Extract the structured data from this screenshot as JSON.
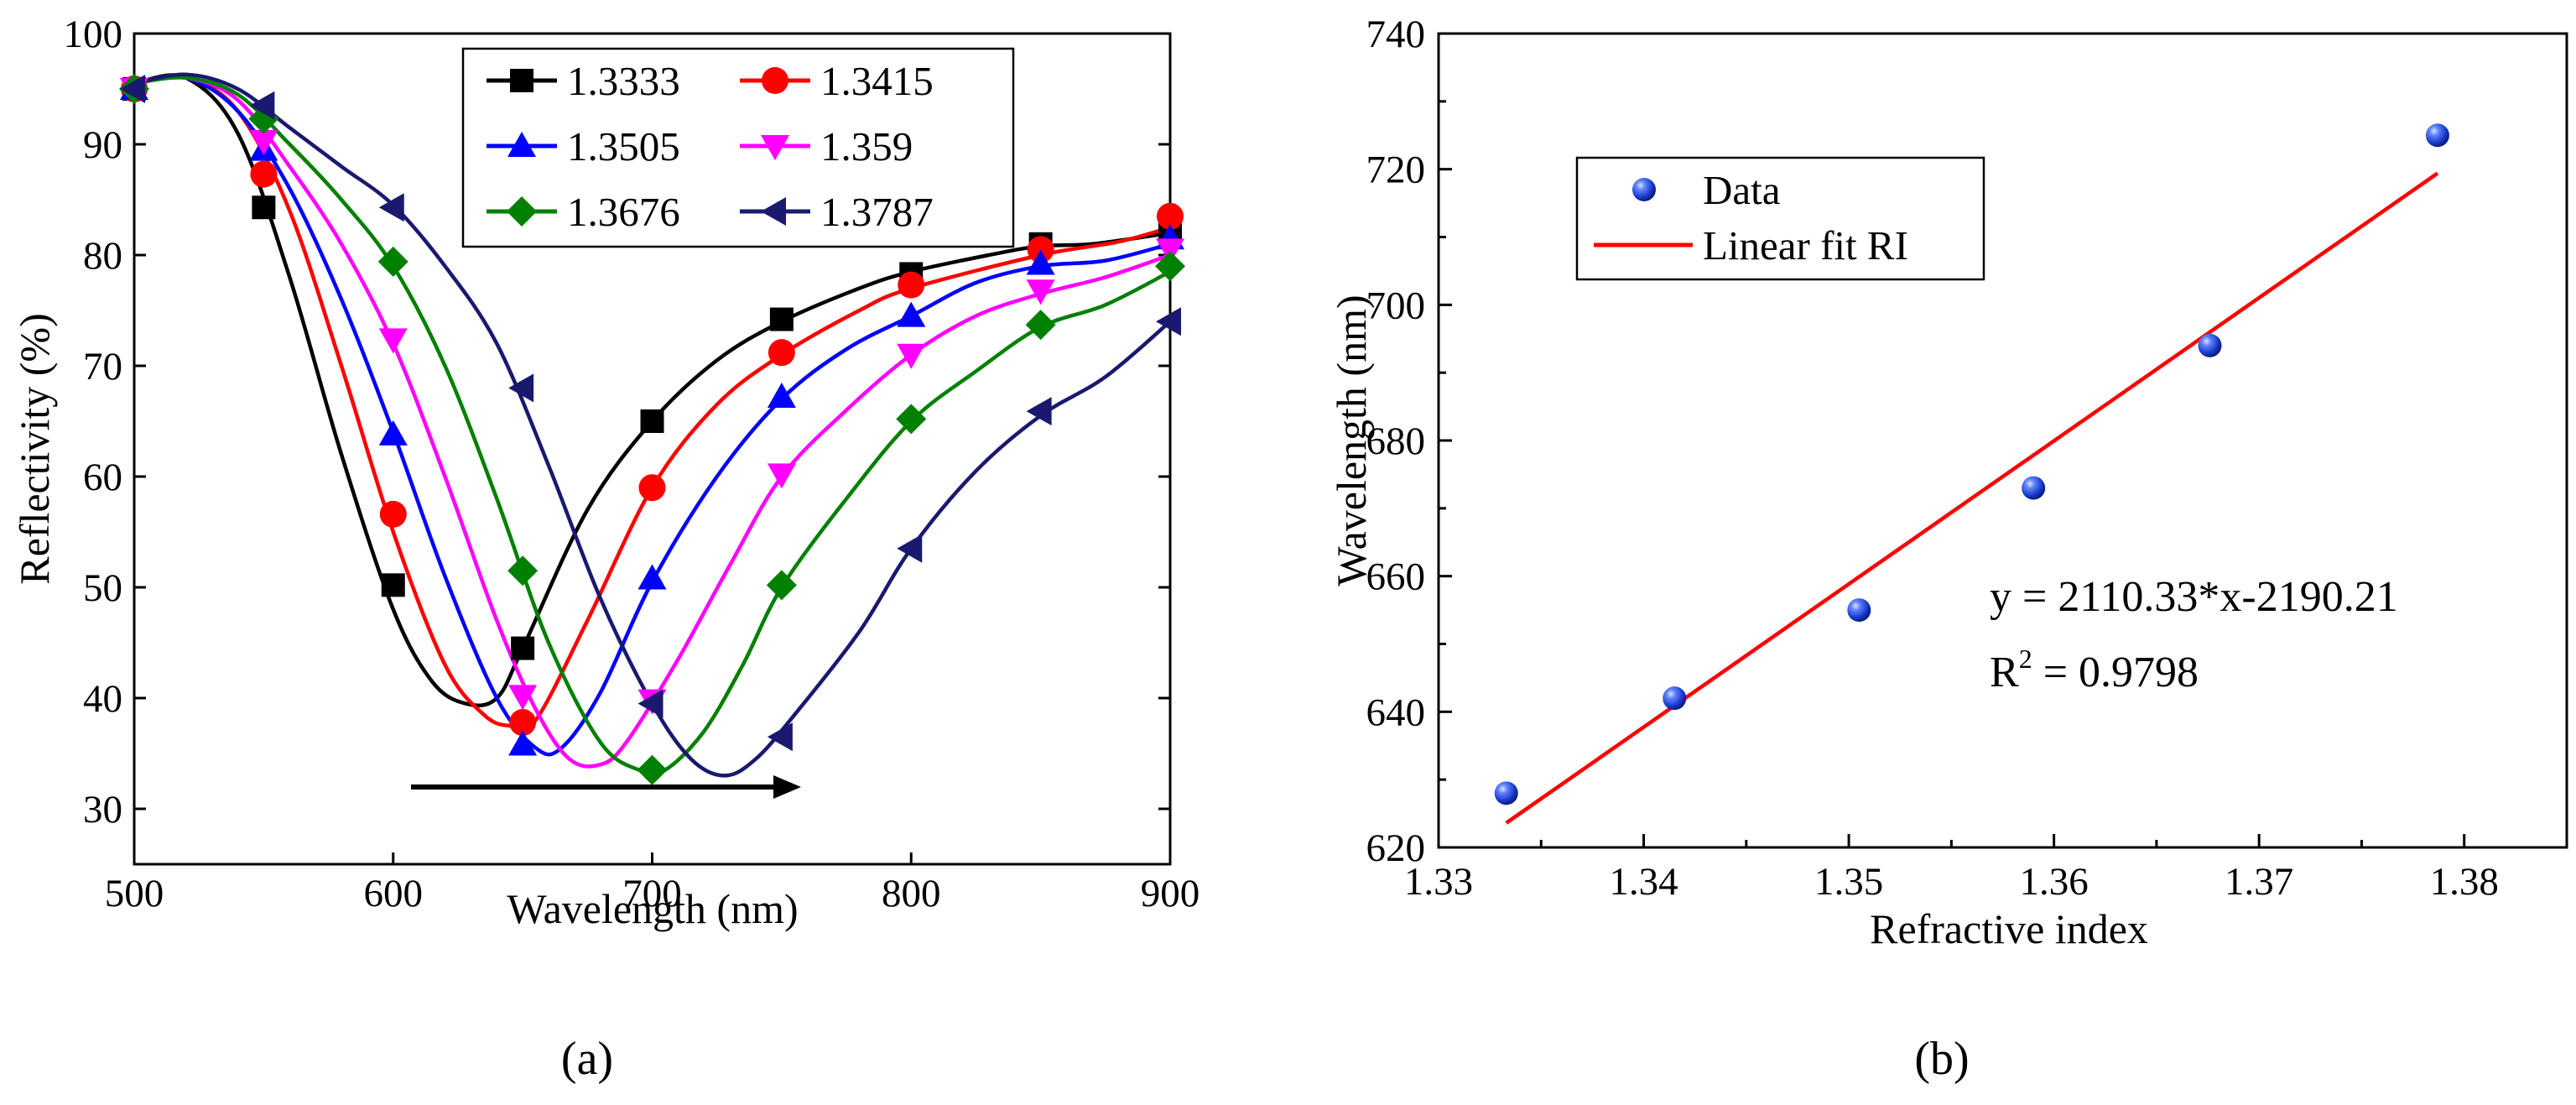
{
  "chart_data": [
    {
      "type": "line",
      "panel_label": "(a)",
      "title": "",
      "xlabel": "Wavelength (nm)",
      "ylabel": "Reflectivity (%)",
      "xlim": [
        500,
        900
      ],
      "ylim": [
        25,
        100
      ],
      "xticks": [
        500,
        600,
        700,
        800,
        900
      ],
      "yticks": [
        30,
        40,
        50,
        60,
        70,
        80,
        90,
        100
      ],
      "legend_position": "top-center",
      "legend_columns": 2,
      "annotation": "arrow pointing right indicating red shift of resonance",
      "series": [
        {
          "name": "1.3333",
          "color": "#000000",
          "marker": "square",
          "curve": [
            [
              500,
              95.5
            ],
            [
              520,
              96
            ],
            [
              540,
              91
            ],
            [
              560,
              78
            ],
            [
              580,
              62
            ],
            [
              600,
              48
            ],
            [
              615,
              41.5
            ],
            [
              628,
              39.5
            ],
            [
              640,
              40
            ],
            [
              650,
              44.5
            ],
            [
              675,
              57
            ],
            [
              700,
              65
            ],
            [
              725,
              70.5
            ],
            [
              750,
              74
            ],
            [
              780,
              77
            ],
            [
              800,
              78.5
            ],
            [
              830,
              80
            ],
            [
              850,
              80.8
            ],
            [
              870,
              81
            ],
            [
              900,
              82
            ]
          ],
          "markers": [
            [
              500,
              95
            ],
            [
              550,
              84.3
            ],
            [
              600,
              50.2
            ],
            [
              650,
              44.5
            ],
            [
              700,
              65
            ],
            [
              750,
              74.2
            ],
            [
              800,
              78.3
            ],
            [
              850,
              81
            ],
            [
              900,
              82.5
            ]
          ]
        },
        {
          "name": "1.3415",
          "color": "#ff0000",
          "marker": "circle",
          "curve": [
            [
              500,
              95.5
            ],
            [
              520,
              96
            ],
            [
              540,
              93
            ],
            [
              560,
              84
            ],
            [
              580,
              70
            ],
            [
              600,
              55
            ],
            [
              620,
              43
            ],
            [
              635,
              38.5
            ],
            [
              645,
              37.5
            ],
            [
              655,
              38
            ],
            [
              675,
              47
            ],
            [
              700,
              59
            ],
            [
              725,
              66.5
            ],
            [
              750,
              71
            ],
            [
              780,
              75
            ],
            [
              800,
              77
            ],
            [
              850,
              80
            ],
            [
              880,
              81.2
            ],
            [
              900,
              82.5
            ]
          ],
          "markers": [
            [
              500,
              95
            ],
            [
              550,
              87.3
            ],
            [
              600,
              56.6
            ],
            [
              650,
              37.8
            ],
            [
              700,
              59
            ],
            [
              750,
              71.2
            ],
            [
              800,
              77.3
            ],
            [
              850,
              80.5
            ],
            [
              900,
              83.5
            ]
          ]
        },
        {
          "name": "1.3505",
          "color": "#0000ff",
          "marker": "triangle-up",
          "curve": [
            [
              500,
              95.5
            ],
            [
              520,
              96
            ],
            [
              540,
              93
            ],
            [
              560,
              86
            ],
            [
              580,
              76
            ],
            [
              600,
              64
            ],
            [
              620,
              51
            ],
            [
              640,
              40
            ],
            [
              655,
              35.5
            ],
            [
              665,
              35.5
            ],
            [
              680,
              40.5
            ],
            [
              700,
              50.5
            ],
            [
              725,
              60
            ],
            [
              750,
              67
            ],
            [
              775,
              71.5
            ],
            [
              800,
              74.5
            ],
            [
              825,
              77.5
            ],
            [
              850,
              79
            ],
            [
              875,
              79.5
            ],
            [
              900,
              81
            ]
          ],
          "markers": [
            [
              500,
              95
            ],
            [
              550,
              89.5
            ],
            [
              600,
              63.8
            ],
            [
              650,
              35.8
            ],
            [
              700,
              50.8
            ],
            [
              750,
              67.2
            ],
            [
              800,
              74.5
            ],
            [
              850,
              79.2
            ],
            [
              900,
              81.5
            ]
          ]
        },
        {
          "name": "1.359",
          "color": "#ff00ff",
          "marker": "triangle-down",
          "curve": [
            [
              500,
              95.5
            ],
            [
              520,
              96
            ],
            [
              540,
              94
            ],
            [
              560,
              88
            ],
            [
              580,
              81
            ],
            [
              600,
              72
            ],
            [
              620,
              60
            ],
            [
              640,
              47
            ],
            [
              655,
              39
            ],
            [
              668,
              34.5
            ],
            [
              680,
              34
            ],
            [
              690,
              36
            ],
            [
              710,
              43.5
            ],
            [
              730,
              52
            ],
            [
              750,
              60
            ],
            [
              775,
              66
            ],
            [
              800,
              71
            ],
            [
              825,
              74.5
            ],
            [
              850,
              76.5
            ],
            [
              875,
              78
            ],
            [
              900,
              80
            ]
          ],
          "markers": [
            [
              500,
              95
            ],
            [
              550,
              90.3
            ],
            [
              600,
              72.4
            ],
            [
              650,
              40.2
            ],
            [
              700,
              39.8
            ],
            [
              750,
              60.2
            ],
            [
              800,
              71
            ],
            [
              850,
              76.8
            ],
            [
              900,
              80.5
            ]
          ]
        },
        {
          "name": "1.3676",
          "color": "#008000",
          "marker": "diamond",
          "curve": [
            [
              500,
              95.5
            ],
            [
              520,
              96
            ],
            [
              540,
              94.5
            ],
            [
              560,
              90
            ],
            [
              580,
              85
            ],
            [
              600,
              79
            ],
            [
              620,
              70
            ],
            [
              640,
              58
            ],
            [
              660,
              45
            ],
            [
              680,
              36
            ],
            [
              695,
              33.5
            ],
            [
              705,
              33.5
            ],
            [
              720,
              37
            ],
            [
              735,
              43
            ],
            [
              750,
              50
            ],
            [
              775,
              58
            ],
            [
              800,
              65
            ],
            [
              825,
              69.5
            ],
            [
              850,
              73.5
            ],
            [
              875,
              75.5
            ],
            [
              900,
              78.5
            ]
          ],
          "markers": [
            [
              500,
              95
            ],
            [
              550,
              92.3
            ],
            [
              600,
              79.4
            ],
            [
              650,
              51.5
            ],
            [
              700,
              33.5
            ],
            [
              750,
              50.2
            ],
            [
              800,
              65.2
            ],
            [
              850,
              73.7
            ],
            [
              900,
              79
            ]
          ]
        },
        {
          "name": "1.3787",
          "color": "#191970",
          "marker": "triangle-left",
          "curve": [
            [
              500,
              95.5
            ],
            [
              520,
              96.3
            ],
            [
              540,
              95
            ],
            [
              560,
              91.5
            ],
            [
              580,
              88
            ],
            [
              600,
              84.5
            ],
            [
              620,
              79
            ],
            [
              640,
              72
            ],
            [
              660,
              61
            ],
            [
              680,
              49
            ],
            [
              700,
              39.5
            ],
            [
              715,
              34.5
            ],
            [
              728,
              33
            ],
            [
              740,
              34.5
            ],
            [
              755,
              38.5
            ],
            [
              780,
              46
            ],
            [
              800,
              53.5
            ],
            [
              825,
              60.5
            ],
            [
              850,
              65.5
            ],
            [
              875,
              69
            ],
            [
              900,
              74
            ]
          ],
          "markers": [
            [
              500,
              95
            ],
            [
              550,
              93.5
            ],
            [
              600,
              84.3
            ],
            [
              650,
              68
            ],
            [
              700,
              39.5
            ],
            [
              750,
              36.5
            ],
            [
              800,
              53.5
            ],
            [
              850,
              65.9
            ],
            [
              900,
              74
            ]
          ]
        }
      ]
    },
    {
      "type": "scatter",
      "panel_label": "(b)",
      "title": "",
      "xlabel": "Refractive index",
      "ylabel": "Wavelength (nm)",
      "xlim": [
        1.33,
        1.385
      ],
      "ylim": [
        620,
        740
      ],
      "xticks": [
        1.33,
        1.34,
        1.35,
        1.36,
        1.37,
        1.38
      ],
      "xtick_labels": [
        "1.33",
        "1.34",
        "1.35",
        "1.36",
        "1.37",
        "1.38"
      ],
      "yticks": [
        620,
        640,
        660,
        680,
        700,
        720,
        740
      ],
      "legend_position": "top-left",
      "series": [
        {
          "name": "Data",
          "color": "#1f3fd0",
          "marker": "sphere",
          "x": [
            1.3333,
            1.3415,
            1.3505,
            1.359,
            1.3676,
            1.3787
          ],
          "y": [
            628,
            642,
            655,
            673,
            694,
            725
          ]
        },
        {
          "name": "Linear fit RI",
          "color": "#ff0000",
          "marker": "none",
          "x": [
            1.3333,
            1.3787
          ],
          "y": [
            623.6,
            719.4
          ]
        }
      ],
      "equation": "y = 2110.33*x-2190.21",
      "r2_prefix": "R",
      "r2_sup": "2",
      "r2_value": " = 0.9798"
    }
  ]
}
